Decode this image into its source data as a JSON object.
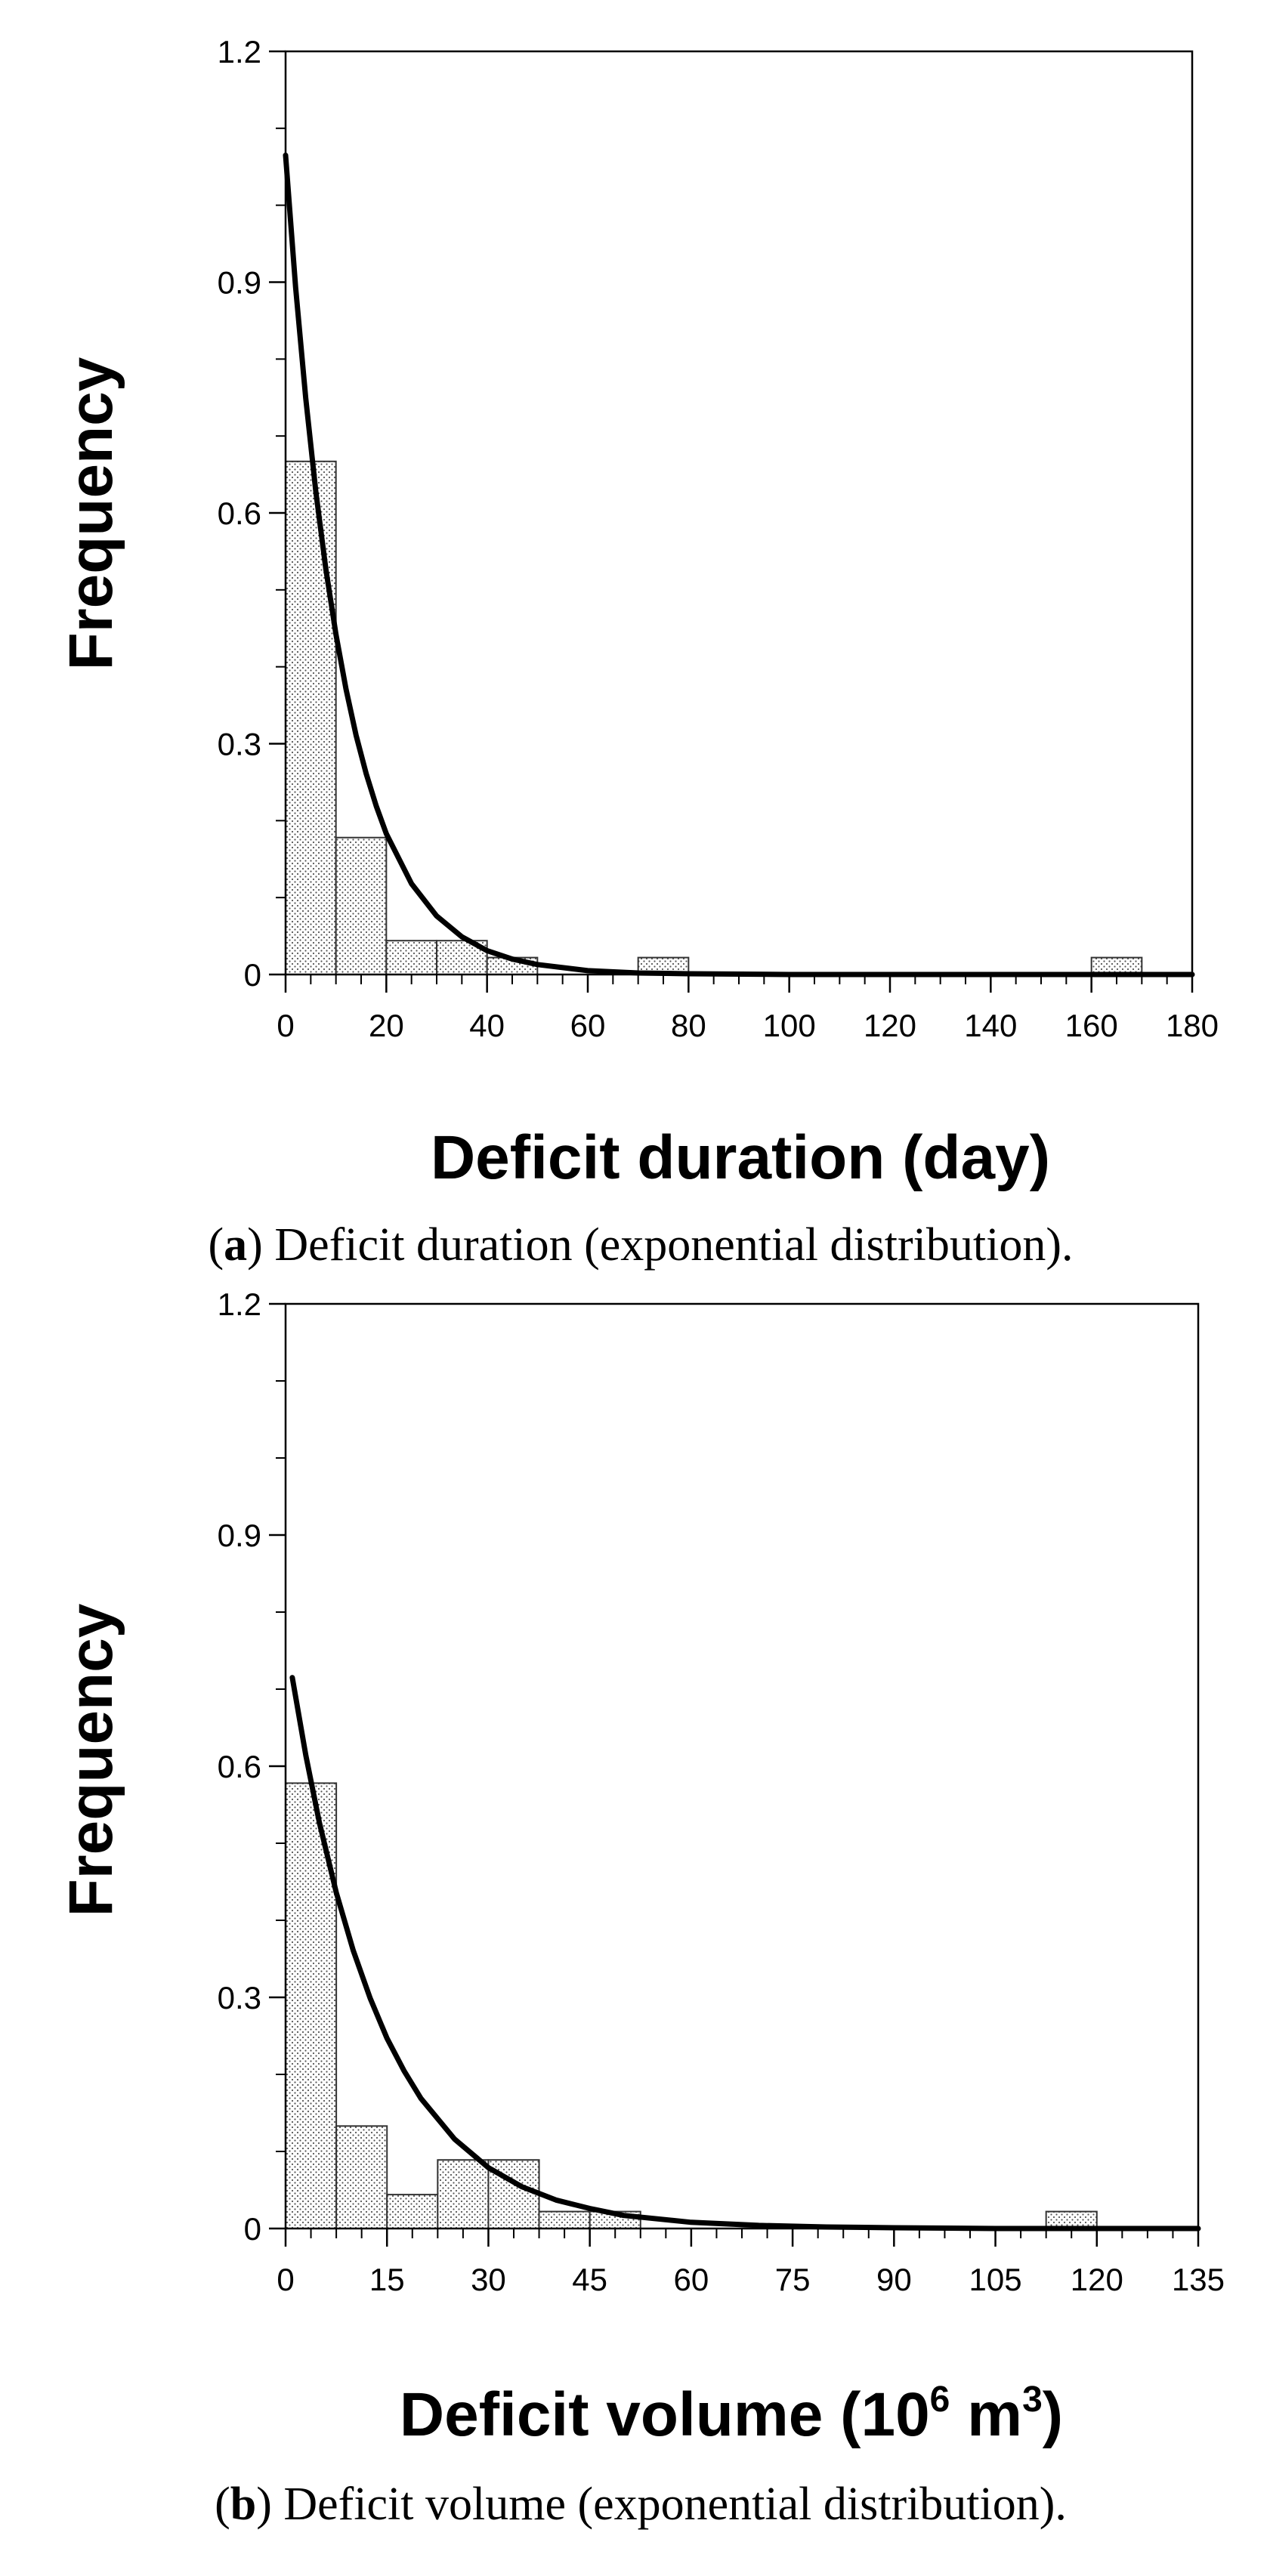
{
  "figure": {
    "panels": [
      {
        "caption_letter": "a",
        "caption_text": "Deficit duration (exponential distribution).",
        "x_title": "Deficit duration (day)",
        "x_title_sup": "",
        "x_title_rest": "",
        "x_title_sup2": "",
        "x_title_end": ""
      },
      {
        "caption_letter": "b",
        "caption_text": "Deficit volume (exponential distribution).",
        "x_title": "Deficit volume (10",
        "x_title_sup": "6",
        "x_title_rest": " m",
        "x_title_sup2": "3",
        "x_title_end": ")"
      }
    ]
  },
  "chart_data": [
    {
      "type": "bar",
      "title": "",
      "xlabel": "Deficit duration (day)",
      "ylabel": "Frequency",
      "xlim": [
        0,
        180
      ],
      "ylim": [
        0,
        1.2
      ],
      "xticks": [
        0,
        20,
        40,
        60,
        80,
        100,
        120,
        140,
        160,
        180
      ],
      "yticks": [
        0,
        0.3,
        0.6,
        0.9,
        1.2
      ],
      "bin_width": 10,
      "bins": [
        {
          "from": 0,
          "to": 10,
          "value": 0.667
        },
        {
          "from": 10,
          "to": 20,
          "value": 0.178
        },
        {
          "from": 20,
          "to": 30,
          "value": 0.044
        },
        {
          "from": 30,
          "to": 40,
          "value": 0.044
        },
        {
          "from": 40,
          "to": 50,
          "value": 0.022
        },
        {
          "from": 70,
          "to": 80,
          "value": 0.022
        },
        {
          "from": 160,
          "to": 170,
          "value": 0.022
        }
      ],
      "fitted_curve": {
        "distribution": "exponential",
        "x": [
          0,
          2,
          4,
          6,
          8,
          10,
          12,
          14,
          16,
          18,
          20,
          25,
          30,
          35,
          40,
          45,
          50,
          60,
          70,
          80,
          100,
          120,
          140,
          160,
          180
        ],
        "y": [
          1.065,
          0.893,
          0.749,
          0.628,
          0.527,
          0.442,
          0.371,
          0.311,
          0.261,
          0.219,
          0.183,
          0.118,
          0.076,
          0.049,
          0.031,
          0.02,
          0.013,
          0.005,
          0.002,
          0.001,
          0.0,
          0.0,
          0.0,
          0.0,
          0.0
        ]
      },
      "grid": false,
      "legend": "none"
    },
    {
      "type": "bar",
      "title": "",
      "xlabel": "Deficit volume (10^6 m^3)",
      "ylabel": "Frequency",
      "xlim": [
        0,
        135
      ],
      "ylim": [
        0,
        1.2
      ],
      "xticks": [
        0,
        15,
        30,
        45,
        60,
        75,
        90,
        105,
        120,
        135
      ],
      "yticks": [
        0,
        0.3,
        0.6,
        0.9,
        1.2
      ],
      "bin_width": 7.5,
      "bins": [
        {
          "from": 0,
          "to": 7.5,
          "value": 0.578
        },
        {
          "from": 7.5,
          "to": 15,
          "value": 0.133
        },
        {
          "from": 15,
          "to": 22.5,
          "value": 0.044
        },
        {
          "from": 22.5,
          "to": 30,
          "value": 0.089
        },
        {
          "from": 30,
          "to": 37.5,
          "value": 0.089
        },
        {
          "from": 37.5,
          "to": 45,
          "value": 0.022
        },
        {
          "from": 45,
          "to": 52.5,
          "value": 0.022
        },
        {
          "from": 112.5,
          "to": 120,
          "value": 0.022
        }
      ],
      "fitted_curve": {
        "distribution": "exponential",
        "x": [
          1,
          3,
          5,
          7.5,
          10,
          12.5,
          15,
          17.5,
          20,
          25,
          30,
          35,
          40,
          45,
          50,
          60,
          70,
          80,
          90,
          105,
          120,
          135
        ],
        "y": [
          0.715,
          0.614,
          0.527,
          0.436,
          0.361,
          0.299,
          0.247,
          0.205,
          0.169,
          0.116,
          0.079,
          0.054,
          0.037,
          0.026,
          0.017,
          0.008,
          0.004,
          0.002,
          0.001,
          0.0,
          0.0,
          0.0
        ]
      },
      "grid": false,
      "legend": "none"
    }
  ]
}
